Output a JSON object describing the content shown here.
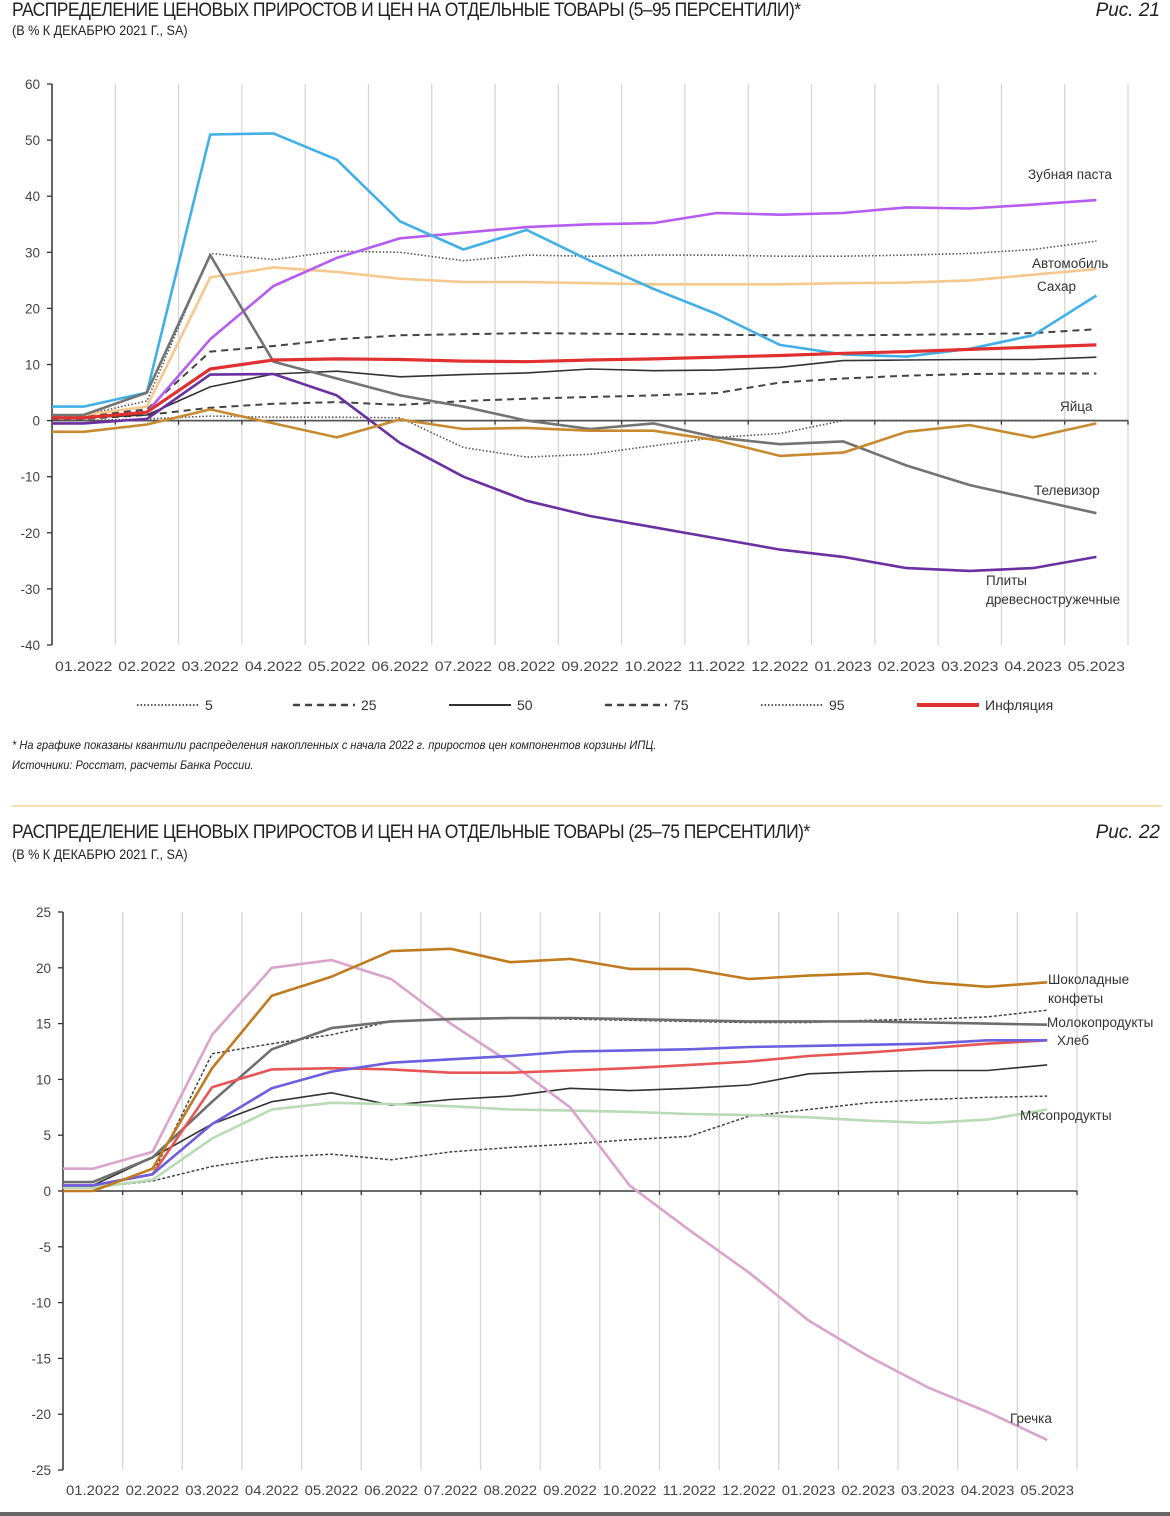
{
  "fig21": {
    "title": "РАСПРЕДЕЛЕНИЕ ЦЕНОВЫХ ПРИРОСТОВ И ЦЕН НА ОТДЕЛЬНЫЕ ТОВАРЫ (5–95 ПЕРСЕНТИЛИ)*",
    "subtitle": "(В % К ДЕКАБРЮ 2021 Г., SA)",
    "fig_label": "Рис. 21",
    "footnote": "* На графике показаны квантили распределения накопленных с начала 2022 г. приростов цен компонентов корзины ИПЦ.",
    "sources": "Источники: Росстат, расчеты Банка России."
  },
  "fig22": {
    "title": "РАСПРЕДЕЛЕНИЕ ЦЕНОВЫХ ПРИРОСТОВ И ЦЕН НА ОТДЕЛЬНЫЕ ТОВАРЫ (25–75 ПЕРСЕНТИЛИ)*",
    "subtitle": "(В % К ДЕКАБРЮ 2021 Г., SA)",
    "fig_label": "Рис. 22"
  },
  "chart_data": [
    {
      "type": "line",
      "title": "РАСПРЕДЕЛЕНИЕ ЦЕНОВЫХ ПРИРОСТОВ И ЦЕН НА ОТДЕЛЬНЫЕ ТОВАРЫ (5–95 ПЕРСЕНТИЛИ)*",
      "xlabel": "",
      "ylabel": "",
      "ylim": [
        -40,
        60
      ],
      "yticks": [
        60,
        50,
        40,
        30,
        20,
        10,
        0,
        -10,
        -20,
        -30,
        -40
      ],
      "grid": "vertical",
      "legend_position": "bottom",
      "categories": [
        "01.2022",
        "02.2022",
        "03.2022",
        "04.2022",
        "05.2022",
        "06.2022",
        "07.2022",
        "08.2022",
        "09.2022",
        "10.2022",
        "11.2022",
        "12.2022",
        "01.2023",
        "02.2023",
        "03.2023",
        "04.2023",
        "05.2023"
      ],
      "series": [
        {
          "name": "5",
          "style": "dotted",
          "color": "#555555",
          "legend": true,
          "values": [
            0,
            0.3,
            0.8,
            0.6,
            0.6,
            0.5,
            -4.8,
            -6.5,
            -6,
            -4.5,
            -3,
            -2.3,
            0,
            0,
            0,
            0,
            0
          ]
        },
        {
          "name": "25",
          "style": "dashed",
          "color": "#444444",
          "legend": true,
          "values": [
            0.3,
            1,
            2.3,
            3,
            3.3,
            2.8,
            3.5,
            3.9,
            4.2,
            4.5,
            4.9,
            6.8,
            7.5,
            8,
            8.3,
            8.4,
            8.4
          ]
        },
        {
          "name": "50",
          "style": "solid-thin",
          "color": "#333333",
          "legend": true,
          "values": [
            0.5,
            1,
            6,
            8.3,
            8.8,
            7.8,
            8.2,
            8.5,
            9.2,
            8.9,
            9,
            9.5,
            10.7,
            10.8,
            10.9,
            10.9,
            11.3
          ]
        },
        {
          "name": "75",
          "style": "dashed",
          "color": "#444444",
          "legend": true,
          "values": [
            0.8,
            2,
            12.3,
            13.3,
            14.5,
            15.2,
            15.4,
            15.6,
            15.5,
            15.4,
            15.3,
            15.2,
            15.2,
            15.3,
            15.4,
            15.6,
            16.3
          ]
        },
        {
          "name": "95",
          "style": "dotted",
          "color": "#555555",
          "legend": true,
          "values": [
            1,
            3.5,
            29.8,
            28.7,
            30.2,
            30,
            28.5,
            29.5,
            29.3,
            29.5,
            29.5,
            29.3,
            29.3,
            29.5,
            29.8,
            30.5,
            32
          ]
        },
        {
          "name": "Автомобиль",
          "style": "solid",
          "color": "#f5c98d",
          "values": [
            1,
            2.5,
            25.5,
            27.3,
            26.5,
            25.3,
            24.7,
            24.7,
            24.5,
            24.3,
            24.3,
            24.3,
            24.5,
            24.6,
            25,
            26,
            27
          ]
        },
        {
          "name": "Зубная паста",
          "style": "solid",
          "color": "#b65cf0",
          "values": [
            0.5,
            1.5,
            14.5,
            24,
            29,
            32.5,
            33.5,
            34.5,
            35,
            35.2,
            37,
            36.7,
            37,
            38,
            37.8,
            38.5,
            39.3
          ]
        },
        {
          "name": "Сахар",
          "style": "solid",
          "color": "#41b0e6",
          "values": [
            2.5,
            5,
            51,
            51.2,
            46.5,
            35.5,
            30.5,
            34,
            28.5,
            23.5,
            19,
            13.5,
            11.8,
            11.4,
            12.8,
            15.2,
            22.3
          ]
        },
        {
          "name": "Телевизор",
          "style": "solid",
          "color": "#737373",
          "values": [
            1,
            5,
            29.5,
            10.5,
            7.5,
            4.5,
            2.5,
            0,
            -1.5,
            -0.5,
            -3,
            -4.2,
            -3.7,
            -8,
            -11.5,
            -14,
            -16.5
          ]
        },
        {
          "name": "Плиты древесностружечные",
          "label_lines": [
            "Плиты",
            "древесностружечные"
          ],
          "style": "solid",
          "color": "#6a2fa0",
          "values": [
            -0.5,
            0.3,
            8.2,
            8.3,
            4.5,
            -4,
            -10,
            -14.3,
            -17,
            -19,
            -21,
            -23,
            -24.3,
            -26.3,
            -26.8,
            -26.3,
            -24.3
          ]
        },
        {
          "name": "Яйца",
          "style": "solid",
          "color": "#c88a2e",
          "values": [
            -2,
            -0.7,
            2,
            -0.5,
            -3,
            0.2,
            -1.5,
            -1.3,
            -1.8,
            -1.8,
            -3.5,
            -6.3,
            -5.7,
            -2,
            -0.8,
            -3,
            -0.5
          ]
        },
        {
          "name": "Инфляция",
          "style": "solid-bold",
          "color": "#e03030",
          "legend": true,
          "values": [
            0.5,
            1.5,
            9.2,
            10.8,
            11,
            10.9,
            10.6,
            10.5,
            10.8,
            11,
            11.3,
            11.6,
            12,
            12.3,
            12.7,
            13.1,
            13.5
          ]
        }
      ]
    },
    {
      "type": "line",
      "title": "РАСПРЕДЕЛЕНИЕ ЦЕНОВЫХ ПРИРОСТОВ И ЦЕН НА ОТДЕЛЬНЫЕ ТОВАРЫ (25–75 ПЕРСЕНТИЛИ)*",
      "xlabel": "",
      "ylabel": "",
      "ylim": [
        -25,
        25
      ],
      "yticks": [
        25,
        20,
        15,
        10,
        5,
        0,
        -5,
        -10,
        -15,
        -20,
        -25
      ],
      "grid": "vertical",
      "categories": [
        "01.2022",
        "02.2022",
        "03.2022",
        "04.2022",
        "05.2022",
        "06.2022",
        "07.2022",
        "08.2022",
        "09.2022",
        "10.2022",
        "11.2022",
        "12.2022",
        "01.2023",
        "02.2023",
        "03.2023",
        "04.2023",
        "05.2023"
      ],
      "series": [
        {
          "name": "25",
          "style": "dashed-fine",
          "color": "#444444",
          "values": [
            0.3,
            0.9,
            2.2,
            3,
            3.3,
            2.8,
            3.5,
            3.9,
            4.2,
            4.6,
            4.9,
            6.7,
            7.3,
            7.9,
            8.2,
            8.4,
            8.5
          ]
        },
        {
          "name": "50",
          "style": "solid-thin",
          "color": "#333333",
          "values": [
            0.5,
            3,
            6,
            8,
            8.8,
            7.7,
            8.2,
            8.5,
            9.2,
            9,
            9.2,
            9.5,
            10.5,
            10.7,
            10.8,
            10.8,
            11.3
          ]
        },
        {
          "name": "75",
          "style": "dashed-fine",
          "color": "#444444",
          "values": [
            0.5,
            1.5,
            12.3,
            13.2,
            14,
            15.2,
            15.4,
            15.5,
            15.4,
            15.3,
            15.2,
            15.1,
            15.1,
            15.3,
            15.4,
            15.6,
            16.2
          ]
        },
        {
          "name": "Мясопродукты",
          "style": "solid",
          "color": "#b8dab4",
          "values": [
            0.3,
            1,
            4.7,
            7.3,
            7.9,
            7.8,
            7.6,
            7.3,
            7.2,
            7.1,
            6.9,
            6.8,
            6.6,
            6.3,
            6.1,
            6.4,
            7.3
          ]
        },
        {
          "name": "Гречка",
          "style": "solid",
          "color": "#d9a3cb",
          "values": [
            2,
            3.5,
            14,
            20,
            20.7,
            19,
            15,
            11.5,
            7.5,
            0.5,
            -3.5,
            -7.3,
            -11.6,
            -14.8,
            -17.6,
            -19.8,
            -22.3
          ]
        },
        {
          "name": "Молокопродукты",
          "style": "solid",
          "color": "#6e6e6e",
          "values": [
            0.8,
            3,
            8,
            12.7,
            14.6,
            15.2,
            15.4,
            15.5,
            15.5,
            15.4,
            15.3,
            15.2,
            15.2,
            15.2,
            15.1,
            15,
            14.9
          ]
        },
        {
          "name": "Инфляция",
          "style": "solid",
          "color": "#e85555",
          "values": [
            0.5,
            1.5,
            9.3,
            10.9,
            11,
            10.9,
            10.6,
            10.6,
            10.8,
            11,
            11.3,
            11.6,
            12.1,
            12.4,
            12.8,
            13.2,
            13.5
          ]
        },
        {
          "name": "Хлеб",
          "style": "solid",
          "color": "#6b5fe0",
          "values": [
            0.5,
            1.5,
            6,
            9.2,
            10.7,
            11.5,
            11.8,
            12.1,
            12.5,
            12.6,
            12.7,
            12.9,
            13,
            13.1,
            13.2,
            13.5,
            13.5
          ]
        },
        {
          "name": "Шоколадные конфеты",
          "label_lines": [
            "Шоколадные",
            "конфеты"
          ],
          "style": "solid",
          "color": "#c07b20",
          "values": [
            0,
            2,
            11,
            17.5,
            19.2,
            21.5,
            21.7,
            20.5,
            20.8,
            19.9,
            19.9,
            19,
            19.3,
            19.5,
            18.7,
            18.3,
            18.7
          ]
        }
      ]
    }
  ]
}
